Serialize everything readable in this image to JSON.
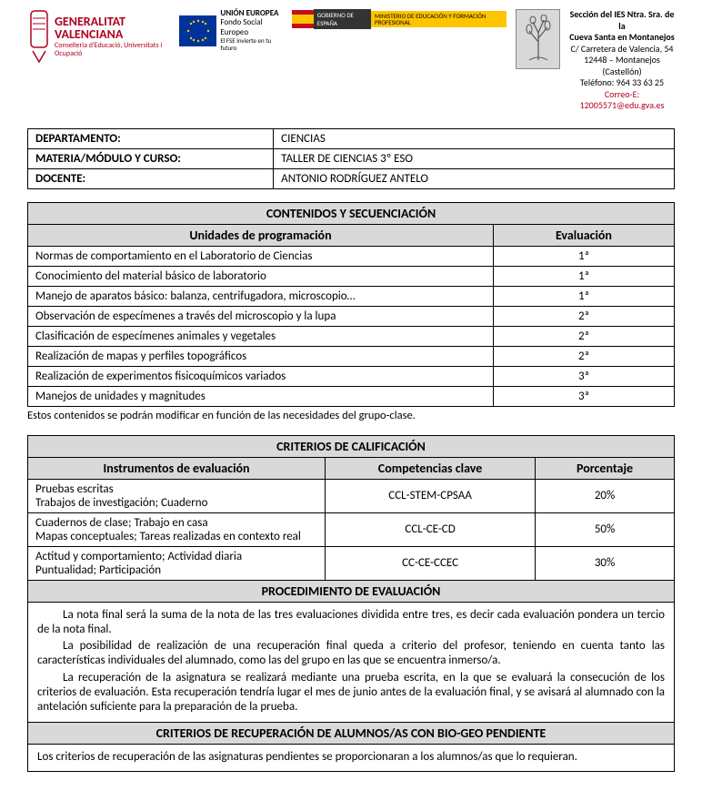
{
  "header": {
    "gva_line1": "GENERALITAT",
    "gva_line2": "VALENCIANA",
    "gva_sub": "Conselleria d'Educació, Universitats i Ocupació",
    "eu_title": "UNIÓN EUROPEA",
    "eu_sub1": "Fondo Social Europeo",
    "eu_sub2": "El FSE invierte en tu futuro",
    "es_gob": "GOBIERNO DE ESPAÑA",
    "es_min": "MINISTERIO DE EDUCACIÓN Y FORMACIÓN PROFESIONAL",
    "school_l1": "Sección del IES Ntra. Sra. de la",
    "school_l2": "Cueva Santa en Montanejos",
    "school_l3": "C/ Carretera de Valencia, 54",
    "school_l4": "12448 – Montanejos (Castellón)",
    "school_l5": "Teléfono: 964 33 63 25",
    "school_l6": "Correo-E: 12005571@edu.gva.es"
  },
  "info": {
    "labels": {
      "dept": "DEPARTAMENTO:",
      "subject": "MATERIA/MÓDULO Y CURSO:",
      "teacher": "DOCENTE:"
    },
    "values": {
      "dept": "CIENCIAS",
      "subject": "TALLER DE CIENCIAS 3º ESO",
      "teacher": "ANTONIO RODRÍGUEZ ANTELO"
    }
  },
  "contents": {
    "title": "CONTENIDOS Y SECUENCIACIÓN",
    "col_unit": "Unidades de programación",
    "col_eval": "Evaluación",
    "rows": [
      {
        "unit": "Normas de comportamiento en el Laboratorio de Ciencias",
        "eval": "1ª"
      },
      {
        "unit": "Conocimiento del material básico de laboratorio",
        "eval": "1ª"
      },
      {
        "unit": "Manejo de aparatos básico: balanza, centrifugadora, microscopio…",
        "eval": "1ª"
      },
      {
        "unit": "Observación de especímenes a través del microscopio y la lupa",
        "eval": "2ª"
      },
      {
        "unit": "Clasificación de especímenes animales y vegetales",
        "eval": "2ª"
      },
      {
        "unit": "Realización de mapas y perfiles topográficos",
        "eval": "2ª"
      },
      {
        "unit": "Realización de experimentos fisicoquímicos variados",
        "eval": "3ª"
      },
      {
        "unit": "Manejos de unidades y magnitudes",
        "eval": "3ª"
      }
    ],
    "note": "Estos contenidos se podrán modificar en función de las necesidades del grupo-clase."
  },
  "criteria": {
    "title": "CRITERIOS DE CALIFICACIÓN",
    "col_instr": "Instrumentos de evaluación",
    "col_comp": "Competencias clave",
    "col_pct": "Porcentaje",
    "rows": [
      {
        "instr": "Pruebas escritas\nTrabajos de investigación; Cuaderno",
        "comp": "CCL-STEM-CPSAA",
        "pct": "20%"
      },
      {
        "instr": "Cuadernos de clase; Trabajo en casa\nMapas conceptuales; Tareas realizadas en contexto real",
        "comp": "CCL-CE-CD",
        "pct": "50%"
      },
      {
        "instr": "Actitud y comportamiento; Actividad diaria\nPuntualidad; Participación",
        "comp": "CC-CE-CCEC",
        "pct": "30%"
      }
    ],
    "proc_title": "PROCEDIMIENTO DE EVALUACIÓN",
    "proc_p1": "La nota final será la suma de la nota de las tres evaluaciones dividida entre tres, es decir cada evaluación pondera un tercio de la nota final.",
    "proc_p2": "La posibilidad de realización de una recuperación final queda a criterio del profesor, teniendo en cuenta tanto las características individuales del alumnado, como las del grupo en las que se encuentra inmerso/a.",
    "proc_p3": "La recuperación de la asignatura se realizará mediante una prueba escrita, en la que se evaluará la consecución de los criterios de evaluación. Esta recuperación tendría lugar el mes de junio antes de la evaluación final, y se avisará al alumnado con la antelación suficiente para la preparación de la prueba.",
    "pend_title": "CRITERIOS DE RECUPERACIÓN DE ALUMNOS/AS CON BIO-GEO PENDIENTE",
    "pend_text": "Los criterios de recuperación de las asignaturas pendientes se proporcionaran a los alumnos/as que lo requieran."
  }
}
